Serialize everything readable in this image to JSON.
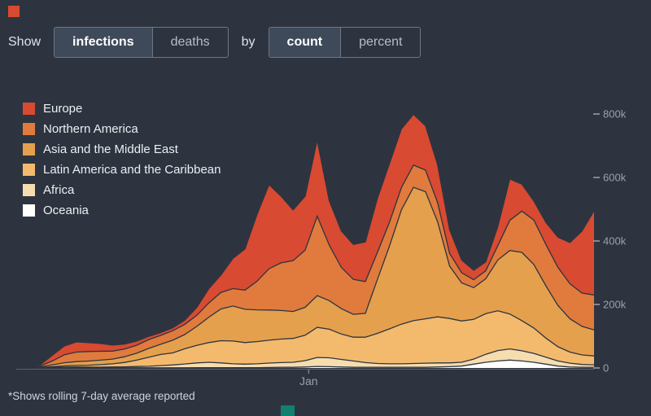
{
  "page": {
    "background": "#2d3440"
  },
  "decorations": {
    "top_left_square_color": "#d84a31",
    "bottom_square_color": "#12806f"
  },
  "controls": {
    "show_label": "Show",
    "by_label": "by",
    "metric_toggle": {
      "options": [
        "infections",
        "deaths"
      ],
      "selected": "infections"
    },
    "mode_toggle": {
      "options": [
        "count",
        "percent"
      ],
      "selected": "count"
    }
  },
  "footnote": "*Shows rolling 7-day average reported",
  "chart_data": {
    "type": "area",
    "stacked": true,
    "unit": "thousands of reported infections per day (rolling 7-day average)",
    "grid": false,
    "legend_position": "top-left",
    "y_axis_side": "right",
    "ylim": [
      0,
      820
    ],
    "y_ticks": {
      "values": [
        0,
        200,
        400,
        600,
        800
      ],
      "labels": [
        "0",
        "200k",
        "400k",
        "600k",
        "800k"
      ]
    },
    "x_tick": {
      "label": "Jan",
      "fraction": 0.506
    },
    "series_top_to_bottom": [
      {
        "name": "Europe",
        "color": "#d84a31",
        "values": [
          0,
          0.5,
          4,
          18,
          28,
          32,
          28,
          25,
          19,
          16,
          13,
          10,
          9,
          9,
          13,
          25,
          45,
          55,
          95,
          130,
          210,
          265,
          210,
          160,
          170,
          240,
          140,
          115,
          110,
          125,
          170,
          185,
          185,
          160,
          140,
          120,
          75,
          40,
          30,
          28,
          60,
          130,
          85,
          60,
          70,
          95,
          130,
          195,
          265
        ]
      },
      {
        "name": "Northern America",
        "color": "#e07b3d",
        "values": [
          0,
          0.5,
          3,
          12,
          25,
          30,
          30,
          28,
          25,
          24,
          25,
          28,
          28,
          30,
          32,
          35,
          45,
          52,
          55,
          60,
          90,
          130,
          150,
          160,
          180,
          250,
          175,
          130,
          110,
          100,
          85,
          75,
          70,
          70,
          68,
          60,
          40,
          32,
          25,
          25,
          45,
          95,
          130,
          140,
          130,
          120,
          110,
          105,
          110
        ]
      },
      {
        "name": "Asia and the Middle East",
        "color": "#e5a04d",
        "values": [
          0,
          0.5,
          2,
          6,
          10,
          12,
          13,
          14,
          15,
          18,
          22,
          28,
          32,
          40,
          45,
          60,
          80,
          100,
          110,
          105,
          100,
          95,
          90,
          85,
          88,
          100,
          90,
          80,
          72,
          75,
          170,
          260,
          360,
          420,
          400,
          300,
          165,
          120,
          100,
          110,
          160,
          200,
          215,
          200,
          165,
          130,
          105,
          90,
          82
        ]
      },
      {
        "name": "Latin America and the Caribbean",
        "color": "#f3ba6e",
        "values": [
          0,
          0.1,
          0.5,
          2,
          4,
          5,
          6,
          8,
          10,
          14,
          20,
          28,
          35,
          38,
          48,
          55,
          62,
          70,
          72,
          68,
          70,
          72,
          74,
          75,
          80,
          95,
          90,
          80,
          75,
          80,
          95,
          110,
          125,
          135,
          140,
          145,
          140,
          130,
          125,
          128,
          125,
          110,
          95,
          80,
          60,
          45,
          35,
          30,
          28
        ]
      },
      {
        "name": "Africa",
        "color": "#f6ddb0",
        "values": [
          0,
          0.2,
          0.5,
          1,
          1.5,
          2,
          2,
          2,
          2.5,
          3,
          4,
          5,
          7,
          9,
          12,
          15,
          17,
          15,
          12,
          11,
          12,
          14,
          15,
          16,
          20,
          28,
          28,
          24,
          20,
          15,
          12,
          11,
          11,
          12,
          13,
          13,
          12,
          12,
          16,
          25,
          33,
          35,
          32,
          28,
          22,
          16,
          12,
          9,
          8
        ]
      },
      {
        "name": "Oceania",
        "color": "#ffffff",
        "values": [
          0,
          0.2,
          0.5,
          1,
          1,
          1,
          0.8,
          0.5,
          0.5,
          0.5,
          0.5,
          0.5,
          0.5,
          0.5,
          0.5,
          1,
          1,
          1,
          1,
          1,
          1,
          1.5,
          2,
          2,
          3,
          5,
          4,
          3,
          2,
          2,
          2,
          2,
          2,
          2,
          2,
          3,
          4,
          6,
          12,
          18,
          22,
          25,
          22,
          18,
          12,
          6,
          3,
          2,
          2
        ]
      }
    ],
    "axis_text_color": "#99a1ad"
  }
}
